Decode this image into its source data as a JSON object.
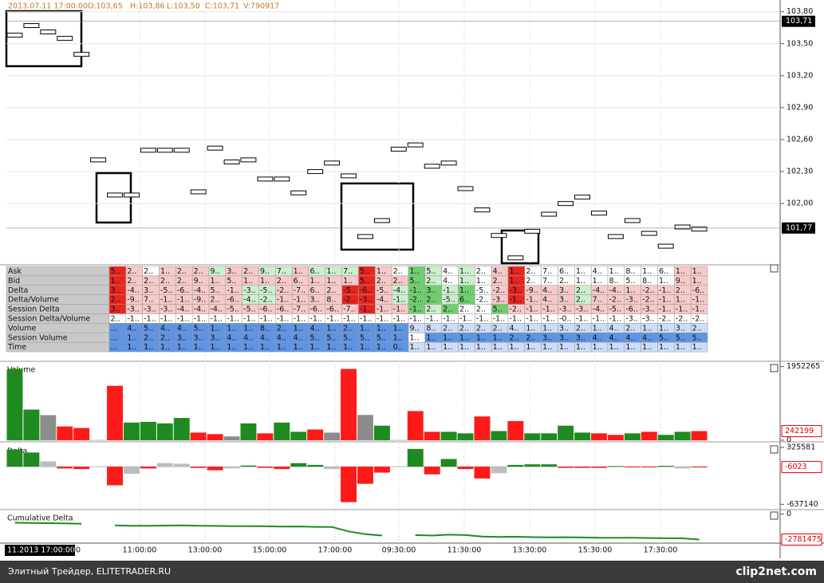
{
  "header": {
    "items": [
      "2013.07.11 17:00:00",
      "O:103,65",
      "H:103,86",
      "L:103,50",
      "C:103,71",
      "V:790917"
    ]
  },
  "chart_data": [
    {
      "type": "marker",
      "categories": [
        null,
        null,
        null,
        null,
        null,
        null,
        null,
        null,
        null,
        null,
        null,
        null,
        null,
        null,
        null,
        null,
        null,
        null,
        null,
        null,
        null,
        null,
        null,
        null,
        null,
        null,
        null,
        null,
        null,
        null,
        null,
        null,
        null,
        null,
        null,
        null,
        null,
        null,
        null,
        null,
        null,
        null
      ],
      "values": [
        103.58,
        103.67,
        103.61,
        103.55,
        103.4,
        102.41,
        102.08,
        102.08,
        102.5,
        102.5,
        102.5,
        102.11,
        102.52,
        102.39,
        102.41,
        102.23,
        102.23,
        102.1,
        102.3,
        102.38,
        102.26,
        101.69,
        101.84,
        102.51,
        102.55,
        102.35,
        102.38,
        102.14,
        101.94,
        101.7,
        101.49,
        101.74,
        101.9,
        102.0,
        102.06,
        101.91,
        101.69,
        101.84,
        101.72,
        101.6,
        101.78,
        101.76
      ],
      "ylim": [
        101.44,
        103.91
      ],
      "yticks": [
        {
          "value": 103.8,
          "label": "103,80"
        },
        {
          "value": 103.5,
          "label": "103,50"
        },
        {
          "value": 103.2,
          "label": "103,20"
        },
        {
          "value": 102.9,
          "label": "102,90"
        },
        {
          "value": 102.6,
          "label": "102,60"
        },
        {
          "value": 102.3,
          "label": "102,30"
        },
        {
          "value": 102.0,
          "label": "102,00"
        }
      ],
      "price_labels": [
        {
          "value": 103.71,
          "label": "103,71"
        },
        {
          "value": 101.77,
          "label": "101,77"
        }
      ],
      "grid": true
    },
    {
      "type": "bar",
      "title": "Volume",
      "values": [
        1890000,
        813000,
        665000,
        366000,
        325000,
        null,
        1443000,
        468000,
        488000,
        447000,
        590000,
        203000,
        163000,
        102000,
        447000,
        183000,
        468000,
        224000,
        285000,
        203000,
        1890000,
        670000,
        386000,
        null,
        773000,
        224000,
        224000,
        183000,
        630000,
        244000,
        508000,
        183000,
        183000,
        386000,
        203000,
        183000,
        142000,
        183000,
        224000,
        142000,
        224000,
        242199
      ],
      "colors": [
        "#1f8a1f",
        "#1f8a1f",
        "#8c8c8c",
        "#ff1a1a",
        "#ff1a1a",
        null,
        "#ff1a1a",
        "#1f8a1f",
        "#1f8a1f",
        "#1f8a1f",
        "#1f8a1f",
        "#ff1a1a",
        "#ff1a1a",
        "#8c8c8c",
        "#1f8a1f",
        "#ff1a1a",
        "#1f8a1f",
        "#1f8a1f",
        "#ff1a1a",
        "#8c8c8c",
        "#ff1a1a",
        "#8c8c8c",
        "#1f8a1f",
        null,
        "#ff1a1a",
        "#ff1a1a",
        "#1f8a1f",
        "#1f8a1f",
        "#ff1a1a",
        "#1f8a1f",
        "#ff1a1a",
        "#1f8a1f",
        "#1f8a1f",
        "#1f8a1f",
        "#1f8a1f",
        "#ff1a1a",
        "#ff1a1a",
        "#1f8a1f",
        "#ff1a1a",
        "#1f8a1f",
        "#1f8a1f",
        "#ff1a1a"
      ],
      "ylim": [
        0,
        2050000
      ],
      "yticks": [
        0,
        1952265
      ]
    },
    {
      "type": "bar",
      "title": "Delta",
      "values": [
        290000,
        240000,
        90000,
        -30000,
        -40000,
        null,
        -315000,
        -120000,
        -30000,
        60000,
        50000,
        -20000,
        -60000,
        -30000,
        20000,
        -20000,
        -40000,
        60000,
        30000,
        -40000,
        -600000,
        -290000,
        -100000,
        null,
        300000,
        -130000,
        130000,
        -40000,
        -200000,
        -110000,
        30000,
        40000,
        40000,
        -20000,
        -20000,
        -20000,
        10000,
        -10000,
        -10000,
        15000,
        -30000,
        -6023
      ],
      "colors": [
        "#1f8a1f",
        "#1f8a1f",
        "#bdbdbd",
        "#ff1a1a",
        "#ff1a1a",
        null,
        "#ff1a1a",
        "#bdbdbd",
        "#ff1a1a",
        "#bdbdbd",
        "#bdbdbd",
        "#ff1a1a",
        "#ff1a1a",
        "#bdbdbd",
        "#1f8a1f",
        "#ff1a1a",
        "#ff1a1a",
        "#1f8a1f",
        "#1f8a1f",
        "#bdbdbd",
        "#ff1a1a",
        "#ff1a1a",
        "#ff1a1a",
        null,
        "#1f8a1f",
        "#ff1a1a",
        "#1f8a1f",
        "#ff1a1a",
        "#ff1a1a",
        "#bdbdbd",
        "#1f8a1f",
        "#1f8a1f",
        "#1f8a1f",
        "#ff1a1a",
        "#ff1a1a",
        "#ff1a1a",
        "#1f8a1f",
        "#ff1a1a",
        "#ff1a1a",
        "#1f8a1f",
        "#bdbdbd",
        "#ff1a1a"
      ],
      "ylim": [
        -700000,
        380000
      ],
      "yticks": [
        -637140,
        325581
      ]
    },
    {
      "type": "line",
      "title": "Cumulative Delta",
      "color": "#1f8a1f",
      "values": [
        -950000,
        -980000,
        -1000000,
        -1020000,
        -1060000,
        null,
        -1250000,
        -1280000,
        -1290000,
        -1260000,
        -1250000,
        -1280000,
        -1300000,
        -1330000,
        -1320000,
        -1340000,
        -1380000,
        -1360000,
        -1400000,
        -1420000,
        -1900000,
        -2200000,
        -2350000,
        null,
        -2300000,
        -2350000,
        -2250000,
        -2300000,
        -2450000,
        -2500000,
        -2480000,
        -2520000,
        -2550000,
        -2530000,
        -2560000,
        -2580000,
        -2600000,
        -2590000,
        -2620000,
        -2640000,
        -2650000,
        -2781475
      ],
      "ylim": [
        -3000000,
        300000
      ],
      "yticks": [
        0
      ]
    }
  ],
  "table": {
    "rows": [
      {
        "label": "Ask",
        "tones": "RpwpppgppggpgggRpwGgwgwpRwwwwwwwwwpp",
        "cells": [
          "5..",
          "2..",
          "2..",
          "1..",
          "2..",
          "2..",
          "9..",
          "3..",
          "2..",
          "9..",
          "7..",
          "1..",
          "6..",
          "1..",
          "7..",
          "5..",
          "1..",
          "2..",
          "1..",
          "5..",
          "4..",
          "1..",
          "2..",
          "4..",
          "1..",
          "2..",
          "7..",
          "6..",
          "1..",
          "4..",
          "1..",
          "8..",
          "1..",
          "6..",
          "1..",
          "1.."
        ]
      },
      {
        "label": "Bid",
        "tones": "RppppppppppppppRppGgwgwpRwwwwwwwwwpp",
        "cells": [
          "1..",
          "2..",
          "2..",
          "2..",
          "2..",
          "9..",
          "1..",
          "5..",
          "1..",
          "1..",
          "2..",
          "6..",
          "1..",
          "1..",
          "1..",
          "5..",
          "2..",
          "2..",
          "5..",
          "2..",
          "4..",
          "1..",
          "1..",
          "2..",
          "1..",
          "2..",
          "7..",
          "2..",
          "1..",
          "1..",
          "8..",
          "5..",
          "8..",
          "1..",
          "9..",
          "1.."
        ]
      },
      {
        "label": "Delta",
        "tones": "RpppppppggppppRRpgGGgGwpRpppgppppppp",
        "cells": [
          "3..",
          "-4..",
          "3..",
          "-5..",
          "-6..",
          "-4..",
          "5..",
          "-1..",
          "-3..",
          "-5..",
          "-2..",
          "-7..",
          "6..",
          "2..",
          "-5..",
          "-6..",
          "-5..",
          "-4..",
          "-1..",
          "3..",
          "-1..",
          "1..",
          "-5..",
          "-2..",
          "-3..",
          "-9..",
          "4..",
          "3..",
          "2..",
          "-4..",
          "-4..",
          "1..",
          "-2..",
          "-1..",
          "2..",
          "-6.."
        ]
      },
      {
        "label": "Delta/Volume",
        "tones": "RpppppppggppppRRpgGGgGwpRpppgppppppp",
        "cells": [
          "2..",
          "-9..",
          "7..",
          "-1..",
          "-1..",
          "-9..",
          "2..",
          "-6..",
          "-4..",
          "-2..",
          "-1..",
          "-1..",
          "3..",
          "8..",
          "-2..",
          "-3..",
          "-4..",
          "-1..",
          "-2..",
          "2..",
          "-5..",
          "6..",
          "-2..",
          "-3..",
          "-1..",
          "-1..",
          "4..",
          "3..",
          "2..",
          "7..",
          "-2..",
          "-3..",
          "-2..",
          "-1..",
          "1..",
          "-1.."
        ]
      },
      {
        "label": "Session Delta",
        "tones": "RppppppppppppppRppGgGwwGpppppppppppp",
        "cells": [
          "3..",
          "-3..",
          "-3..",
          "-3..",
          "-4..",
          "-4..",
          "-4..",
          "-5..",
          "-5..",
          "-6..",
          "-6..",
          "-7..",
          "-6..",
          "-6..",
          "-7..",
          "-1..",
          "-1..",
          "-1..",
          "-1..",
          "2..",
          "2..",
          "2..",
          "2..",
          "5..",
          "-2..",
          "-1..",
          "-1..",
          "-3..",
          "-3..",
          "-4..",
          "-5..",
          "-6..",
          "-3..",
          "-1..",
          "-1..",
          "-1.."
        ]
      },
      {
        "label": "Session Delta/Volume",
        "tones": "",
        "cells": [
          "2..",
          "-1..",
          "-1..",
          "-1..",
          "-1..",
          "-1..",
          "-1..",
          "-1..",
          "-1..",
          "-1..",
          "-1..",
          "-1..",
          "-1..",
          "-1..",
          "-1..",
          "-1..",
          "-1..",
          "-1..",
          "-1..",
          "-1..",
          "-1..",
          "-1..",
          "-1..",
          "-1..",
          "-1..",
          "-1..",
          "-1..",
          "-0..",
          "-1..",
          "-1..",
          "-1..",
          "-3..",
          "-3..",
          "-2..",
          "-2..",
          "-2.."
        ]
      },
      {
        "label": "Volume",
        "tones": "bbbbbbbbbbbbbbbbbbllllllllllllllllll",
        "cells": [
          "...",
          "4..",
          "5..",
          "4..",
          "4..",
          "5..",
          "1..",
          "1..",
          "1..",
          "8..",
          "2..",
          "1..",
          "4..",
          "1..",
          "2..",
          "1..",
          "1..",
          "1..",
          "9..",
          "8..",
          "2..",
          "2..",
          "2..",
          "2..",
          "4..",
          "1..",
          "1..",
          "3..",
          "2..",
          "1..",
          "4..",
          "2..",
          "1..",
          "1..",
          "3..",
          "2.."
        ]
      },
      {
        "label": "Session Volume",
        "tones": "bbbbbbbbbbbbbbbbbbwbbbbbbbbbbbbbbbbb",
        "cells": [
          "...",
          "1..",
          "2..",
          "2..",
          "3..",
          "3..",
          "3..",
          "4..",
          "4..",
          "4..",
          "4..",
          "4..",
          "5..",
          "5..",
          "5..",
          "5..",
          "5..",
          "1..",
          "1..",
          "1..",
          "1..",
          "1..",
          "1..",
          "1..",
          "2..",
          "2..",
          "3..",
          "3..",
          "3..",
          "4..",
          "4..",
          "4..",
          "4..",
          "5..",
          "5..",
          "5.."
        ]
      },
      {
        "label": "Time",
        "tones": "bbbbbbbbbbbbbbbbbbllllllllllllllllll",
        "cells": [
          "...",
          "1..",
          "1..",
          "1..",
          "1..",
          "1..",
          "1..",
          "1..",
          "1..",
          "1..",
          "1..",
          "1..",
          "1..",
          "1..",
          "1..",
          "1..",
          "1..",
          "0..",
          "1..",
          "1..",
          "1..",
          "1..",
          "1..",
          "1..",
          "1..",
          "1..",
          "1..",
          "1..",
          "1..",
          "1..",
          "1..",
          "1..",
          "1..",
          "1..",
          "1..",
          "1.."
        ]
      }
    ]
  },
  "time_axis": [
    "11.2013 17:00:00",
    "00",
    "11:00:00",
    "13:00:00",
    "15:00:00",
    "17:00:00",
    "09:30:00",
    "11:30:00",
    "13:30:00",
    "15:30:00",
    "17:30:00"
  ],
  "footer": {
    "left": "Элитный Трейдер, ELITETRADER.RU",
    "right": "clip2net.com"
  }
}
